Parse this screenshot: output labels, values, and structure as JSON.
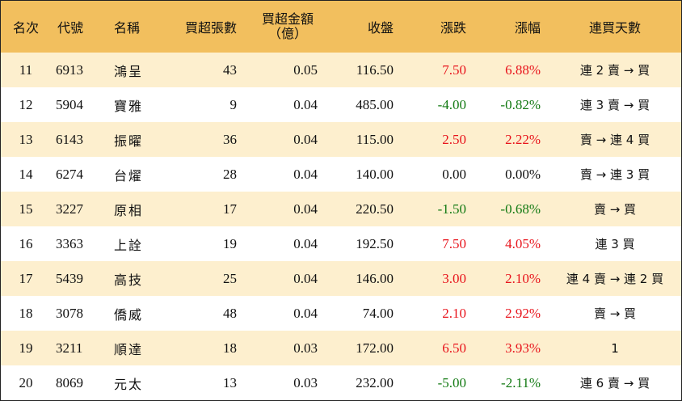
{
  "headers": {
    "rank": "名次",
    "code": "代號",
    "name": "名稱",
    "net_buy_lots": "買超張數",
    "net_buy_amount_line1": "買超金額",
    "net_buy_amount_line2": "（億）",
    "close": "收盤",
    "change": "漲跌",
    "change_pct": "漲幅",
    "streak": "連買天數"
  },
  "colors": {
    "header_bg": "#f2bf5e",
    "stripe_bg": "#fdefce",
    "up": "#e8141c",
    "down": "#137a13"
  },
  "rows": [
    {
      "rank": "11",
      "code": "6913",
      "name": "鴻呈",
      "lots": "43",
      "amount": "0.05",
      "close": "116.50",
      "change": "7.50",
      "pct": "6.88%",
      "dir": "up",
      "streak": "連 2 賣 → 買"
    },
    {
      "rank": "12",
      "code": "5904",
      "name": "寶雅",
      "lots": "9",
      "amount": "0.04",
      "close": "485.00",
      "change": "-4.00",
      "pct": "-0.82%",
      "dir": "down",
      "streak": "連 3 賣 → 買"
    },
    {
      "rank": "13",
      "code": "6143",
      "name": "振曜",
      "lots": "36",
      "amount": "0.04",
      "close": "115.00",
      "change": "2.50",
      "pct": "2.22%",
      "dir": "up",
      "streak": "賣 → 連 4 買"
    },
    {
      "rank": "14",
      "code": "6274",
      "name": "台燿",
      "lots": "28",
      "amount": "0.04",
      "close": "140.00",
      "change": "0.00",
      "pct": "0.00%",
      "dir": "flat",
      "streak": "賣 → 連 3 買"
    },
    {
      "rank": "15",
      "code": "3227",
      "name": "原相",
      "lots": "17",
      "amount": "0.04",
      "close": "220.50",
      "change": "-1.50",
      "pct": "-0.68%",
      "dir": "down",
      "streak": "賣 → 買"
    },
    {
      "rank": "16",
      "code": "3363",
      "name": "上詮",
      "lots": "19",
      "amount": "0.04",
      "close": "192.50",
      "change": "7.50",
      "pct": "4.05%",
      "dir": "up",
      "streak": "連 3 買"
    },
    {
      "rank": "17",
      "code": "5439",
      "name": "高技",
      "lots": "25",
      "amount": "0.04",
      "close": "146.00",
      "change": "3.00",
      "pct": "2.10%",
      "dir": "up",
      "streak": "連 4 賣 → 連 2 買"
    },
    {
      "rank": "18",
      "code": "3078",
      "name": "僑威",
      "lots": "48",
      "amount": "0.04",
      "close": "74.00",
      "change": "2.10",
      "pct": "2.92%",
      "dir": "up",
      "streak": "賣 → 買"
    },
    {
      "rank": "19",
      "code": "3211",
      "name": "順達",
      "lots": "18",
      "amount": "0.03",
      "close": "172.00",
      "change": "6.50",
      "pct": "3.93%",
      "dir": "up",
      "streak": "1"
    },
    {
      "rank": "20",
      "code": "8069",
      "name": "元太",
      "lots": "13",
      "amount": "0.03",
      "close": "232.00",
      "change": "-5.00",
      "pct": "-2.11%",
      "dir": "down",
      "streak": "連 6 賣 → 買"
    }
  ]
}
